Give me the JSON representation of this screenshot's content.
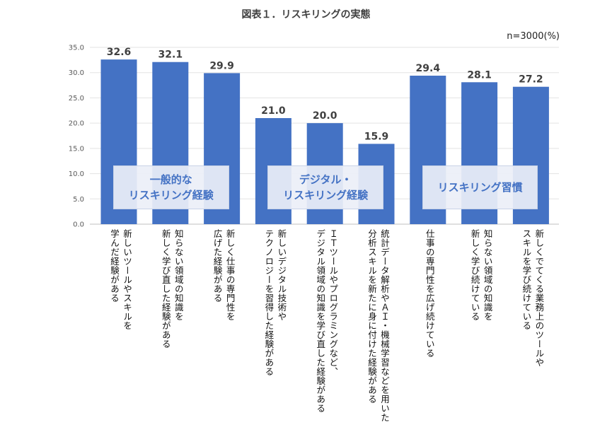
{
  "title": "図表１．リスキリングの実態",
  "note": "n=3000(%)",
  "chart_data": {
    "type": "bar",
    "title": "図表１．リスキリングの実態",
    "ylim": [
      0,
      35
    ],
    "yticks": [
      "0.0",
      "5.0",
      "10.0",
      "15.0",
      "20.0",
      "25.0",
      "30.0",
      "35.0"
    ],
    "grid": true,
    "bar_color": "#4472c4",
    "categories": [
      "新しいツールやスキルを\n学んだ経験がある",
      "知らない領域の知識を\n新しく学び直した経験がある",
      "新しく仕事の専門性を\n広げた経験がある",
      "新しいデジタル技術や\nテクノロジーを習得した経験がある",
      "ＩＴツールやプログラミングなど、\nデジタル領域の知識を学び直した経験がある",
      "統計データ解析やＡＩ・機械学習などを用いた\n分析スキルを新たに身に付けた経験がある",
      "仕事の専門性を広げ続けている",
      "知らない領域の知識を\n新しく学び続けている",
      "新しくでてくる業務上のツールや\nスキルを学び続けている"
    ],
    "values": [
      32.6,
      32.1,
      29.9,
      21.0,
      20.0,
      15.9,
      29.4,
      28.1,
      27.2
    ],
    "value_labels": [
      "32.6",
      "32.1",
      "29.9",
      "21.0",
      "20.0",
      "15.9",
      "29.4",
      "28.1",
      "27.2"
    ],
    "groups": [
      {
        "label": "一般的な\nリスキリング経験",
        "bars": [
          0,
          1,
          2
        ]
      },
      {
        "label": "デジタル・\nリスキリング経験",
        "bars": [
          3,
          4,
          5
        ]
      },
      {
        "label": "リスキリング習慣",
        "bars": [
          6,
          7,
          8
        ]
      }
    ]
  }
}
